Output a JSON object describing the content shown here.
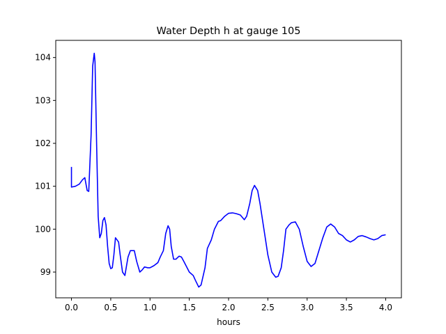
{
  "chart_data": {
    "type": "line",
    "title": "Water Depth h at gauge 105",
    "xlabel": "hours",
    "ylabel": "",
    "xlim": [
      -0.2,
      4.2
    ],
    "ylim": [
      98.4,
      104.4
    ],
    "xticks": [
      0.0,
      0.5,
      1.0,
      1.5,
      2.0,
      2.5,
      3.0,
      3.5,
      4.0
    ],
    "xtick_labels": [
      "0.0",
      "0.5",
      "1.0",
      "1.5",
      "2.0",
      "2.5",
      "3.0",
      "3.5",
      "4.0"
    ],
    "yticks": [
      99,
      100,
      101,
      102,
      103,
      104
    ],
    "ytick_labels": [
      "99",
      "100",
      "101",
      "102",
      "103",
      "104"
    ],
    "grid": false,
    "series": [
      {
        "color": "#0000ff",
        "x": [
          0.0,
          0.0,
          0.05,
          0.1,
          0.14,
          0.17,
          0.2,
          0.22,
          0.25,
          0.27,
          0.29,
          0.3,
          0.32,
          0.34,
          0.36,
          0.38,
          0.4,
          0.42,
          0.44,
          0.46,
          0.48,
          0.5,
          0.52,
          0.54,
          0.56,
          0.6,
          0.62,
          0.65,
          0.68,
          0.72,
          0.75,
          0.8,
          0.83,
          0.87,
          0.9,
          0.93,
          0.97,
          1.0,
          1.05,
          1.1,
          1.13,
          1.17,
          1.2,
          1.23,
          1.25,
          1.27,
          1.3,
          1.33,
          1.37,
          1.4,
          1.43,
          1.5,
          1.55,
          1.58,
          1.62,
          1.65,
          1.7,
          1.73,
          1.78,
          1.82,
          1.87,
          1.9,
          1.95,
          2.0,
          2.05,
          2.1,
          2.15,
          2.2,
          2.23,
          2.27,
          2.3,
          2.33,
          2.37,
          2.4,
          2.45,
          2.5,
          2.55,
          2.6,
          2.63,
          2.67,
          2.7,
          2.73,
          2.77,
          2.8,
          2.85,
          2.9,
          2.95,
          3.0,
          3.05,
          3.1,
          3.15,
          3.2,
          3.25,
          3.3,
          3.35,
          3.4,
          3.45,
          3.5,
          3.55,
          3.6,
          3.65,
          3.7,
          3.75,
          3.8,
          3.85,
          3.9,
          3.95,
          4.0
        ],
        "y": [
          101.45,
          100.98,
          101.0,
          101.05,
          101.15,
          101.2,
          100.9,
          100.88,
          102.2,
          103.8,
          104.1,
          103.9,
          102.0,
          100.3,
          99.8,
          99.9,
          100.2,
          100.27,
          100.1,
          99.6,
          99.2,
          99.08,
          99.1,
          99.4,
          99.8,
          99.7,
          99.4,
          99.0,
          98.92,
          99.35,
          99.5,
          99.5,
          99.25,
          99.0,
          99.05,
          99.12,
          99.1,
          99.1,
          99.15,
          99.22,
          99.35,
          99.5,
          99.9,
          100.08,
          100.0,
          99.6,
          99.3,
          99.3,
          99.37,
          99.35,
          99.25,
          99.0,
          98.92,
          98.8,
          98.65,
          98.7,
          99.1,
          99.55,
          99.75,
          100.0,
          100.18,
          100.2,
          100.3,
          100.37,
          100.38,
          100.36,
          100.33,
          100.22,
          100.3,
          100.6,
          100.9,
          101.02,
          100.9,
          100.6,
          100.0,
          99.4,
          99.0,
          98.88,
          98.9,
          99.1,
          99.5,
          100.0,
          100.1,
          100.15,
          100.17,
          100.0,
          99.6,
          99.25,
          99.13,
          99.2,
          99.5,
          99.8,
          100.05,
          100.12,
          100.05,
          99.9,
          99.85,
          99.75,
          99.7,
          99.75,
          99.83,
          99.85,
          99.82,
          99.78,
          99.75,
          99.78,
          99.85,
          99.87
        ]
      }
    ]
  }
}
